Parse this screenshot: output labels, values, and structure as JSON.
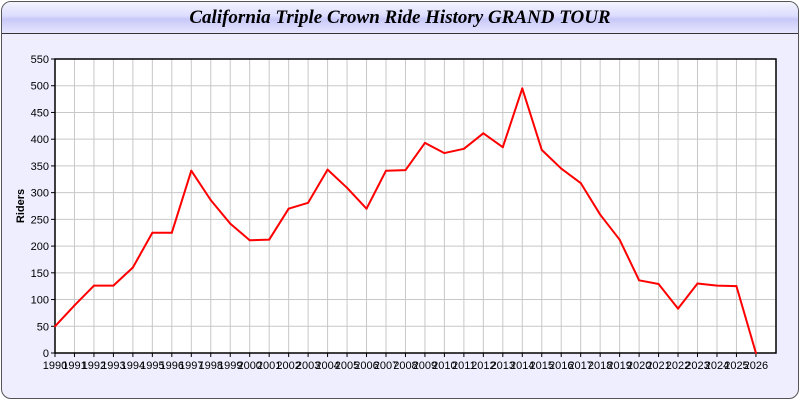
{
  "chart_data": {
    "type": "line",
    "title": "California Triple Crown Ride History GRAND TOUR",
    "xlabel": "",
    "ylabel": "Riders",
    "ylim": [
      0,
      550
    ],
    "yticks": [
      0,
      50,
      100,
      150,
      200,
      250,
      300,
      350,
      400,
      450,
      500,
      550
    ],
    "grid": true,
    "line_color": "#ff0000",
    "x": [
      "1990",
      "1991",
      "1992",
      "1993",
      "1994",
      "1995",
      "1996",
      "1997",
      "1998",
      "1999",
      "2000",
      "2001",
      "2002",
      "2003",
      "2004",
      "2005",
      "2006",
      "2007",
      "2008",
      "2009",
      "2010",
      "2011",
      "2012",
      "2013",
      "2014",
      "2015",
      "2016",
      "2017",
      "2018",
      "2019",
      "2020",
      "2021",
      "2022",
      "2023",
      "2024",
      "2025",
      "2026"
    ],
    "series": [
      {
        "values": [
          50,
          89,
          126,
          126,
          160,
          225,
          225,
          341,
          286,
          242,
          211,
          212,
          270,
          281,
          343,
          309,
          270,
          341,
          342,
          393,
          374,
          382,
          411,
          385,
          495,
          380,
          345,
          318,
          259,
          212,
          136,
          129,
          83,
          130,
          126,
          125,
          0
        ]
      }
    ]
  }
}
